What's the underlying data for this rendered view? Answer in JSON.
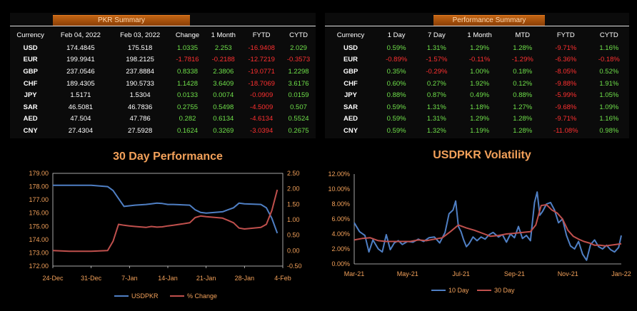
{
  "pkr_summary": {
    "title": "PKR Summary",
    "columns": [
      "Currency",
      "Feb 04, 2022",
      "Feb 03, 2022",
      "Change",
      "1 Month",
      "FYTD",
      "CYTD"
    ],
    "rows": [
      [
        "USD",
        "174.4845",
        "175.518",
        "1.0335",
        "2.253",
        "-16.9408",
        "2.029"
      ],
      [
        "EUR",
        "199.9941",
        "198.2125",
        "-1.7816",
        "-0.2188",
        "-12.7219",
        "-0.3573"
      ],
      [
        "GBP",
        "237.0546",
        "237.8884",
        "0.8338",
        "2.3806",
        "-19.0771",
        "1.2298"
      ],
      [
        "CHF",
        "189.4305",
        "190.5733",
        "1.1428",
        "3.6409",
        "-18.7069",
        "3.6176"
      ],
      [
        "JPY",
        "1.5171",
        "1.5304",
        "0.0133",
        "0.0074",
        "-0.0909",
        "0.0159"
      ],
      [
        "SAR",
        "46.5081",
        "46.7836",
        "0.2755",
        "0.5498",
        "-4.5009",
        "0.507"
      ],
      [
        "AED",
        "47.504",
        "47.786",
        "0.282",
        "0.6134",
        "-4.6134",
        "0.5524"
      ],
      [
        "CNY",
        "27.4304",
        "27.5928",
        "0.1624",
        "0.3269",
        "-3.0394",
        "0.2675"
      ]
    ]
  },
  "performance_summary": {
    "title": "Performance Summary",
    "columns": [
      "Currency",
      "1 Day",
      "7 Day",
      "1 Month",
      "MTD",
      "FYTD",
      "CYTD"
    ],
    "rows": [
      [
        "USD",
        "0.59%",
        "1.31%",
        "1.29%",
        "1.28%",
        "-9.71%",
        "1.16%"
      ],
      [
        "EUR",
        "-0.89%",
        "-1.57%",
        "-0.11%",
        "-1.29%",
        "-6.36%",
        "-0.18%"
      ],
      [
        "GBP",
        "0.35%",
        "-0.29%",
        "1.00%",
        "0.18%",
        "-8.05%",
        "0.52%"
      ],
      [
        "CHF",
        "0.60%",
        "0.27%",
        "1.92%",
        "0.12%",
        "-9.88%",
        "1.91%"
      ],
      [
        "JPY",
        "0.88%",
        "0.87%",
        "0.49%",
        "0.88%",
        "-5.99%",
        "1.05%"
      ],
      [
        "SAR",
        "0.59%",
        "1.31%",
        "1.18%",
        "1.27%",
        "-9.68%",
        "1.09%"
      ],
      [
        "AED",
        "0.59%",
        "1.31%",
        "1.29%",
        "1.28%",
        "-9.71%",
        "1.16%"
      ],
      [
        "CNY",
        "0.59%",
        "1.32%",
        "1.19%",
        "1.28%",
        "-11.08%",
        "0.98%"
      ]
    ]
  },
  "colors": {
    "usdpkr": "#4f7fc4",
    "pct_change": "#c0504d",
    "title": "#f3a15a",
    "positive": "#6fe04a",
    "negative": "#ff3030"
  },
  "chart_data": [
    {
      "type": "line",
      "title": "30 Day Performance",
      "x_tick_labels": [
        "24-Dec",
        "31-Dec",
        "7-Jan",
        "14-Jan",
        "21-Jan",
        "28-Jan",
        "4-Feb"
      ],
      "y_left_ticks": [
        "172.00",
        "173.00",
        "174.00",
        "175.00",
        "176.00",
        "177.00",
        "178.00",
        "179.00"
      ],
      "y_right_ticks": [
        "-0.50",
        "0.00",
        "0.50",
        "1.00",
        "1.50",
        "2.00",
        "2.50"
      ],
      "ylim_left": [
        172,
        179
      ],
      "ylim_right": [
        -0.5,
        2.5
      ],
      "xlim_days": [
        0,
        42
      ],
      "series": [
        {
          "name": "USDPKR",
          "axis": "left",
          "x": [
            0,
            3,
            5,
            6,
            7,
            10,
            11,
            12,
            13,
            14,
            15,
            17,
            18,
            19,
            20,
            21,
            22,
            25,
            26,
            27,
            28,
            31,
            32,
            33,
            34,
            35,
            38,
            39,
            40,
            41
          ],
          "y": [
            178.1,
            178.1,
            178.1,
            178.1,
            178.1,
            178.0,
            177.7,
            177.1,
            176.5,
            176.55,
            176.6,
            176.65,
            176.7,
            176.75,
            176.72,
            176.65,
            176.65,
            176.6,
            176.25,
            176.05,
            176.0,
            176.1,
            176.25,
            176.4,
            176.75,
            176.7,
            176.65,
            176.4,
            175.6,
            174.48
          ]
        },
        {
          "name": "% Change",
          "axis": "right",
          "x": [
            0,
            3,
            5,
            6,
            7,
            10,
            11,
            12,
            13,
            14,
            15,
            17,
            18,
            19,
            20,
            21,
            22,
            25,
            26,
            27,
            28,
            31,
            32,
            33,
            34,
            35,
            38,
            39,
            40,
            41
          ],
          "y": [
            0.0,
            -0.02,
            -0.02,
            -0.02,
            -0.02,
            0.0,
            0.3,
            0.85,
            0.82,
            0.8,
            0.78,
            0.75,
            0.78,
            0.76,
            0.77,
            0.8,
            0.82,
            0.9,
            1.07,
            1.12,
            1.1,
            1.05,
            0.98,
            0.9,
            0.73,
            0.7,
            0.75,
            0.85,
            1.3,
            1.97
          ]
        }
      ]
    },
    {
      "type": "line",
      "title": "USDPKR Volatility",
      "x_tick_labels": [
        "Mar-21",
        "May-21",
        "Jul-21",
        "Sep-21",
        "Nov-21",
        "Jan-22"
      ],
      "y_ticks": [
        "0.00%",
        "2.00%",
        "4.00%",
        "6.00%",
        "8.00%",
        "10.00%",
        "12.00%"
      ],
      "ylim": [
        0,
        12
      ],
      "x_months": [
        0,
        10
      ],
      "series": [
        {
          "name": "10 Day",
          "x": [
            0,
            0.2,
            0.4,
            0.55,
            0.7,
            0.9,
            1.05,
            1.2,
            1.35,
            1.5,
            1.65,
            1.8,
            2.0,
            2.2,
            2.4,
            2.6,
            2.8,
            3.0,
            3.2,
            3.4,
            3.55,
            3.7,
            3.8,
            3.9,
            4.0,
            4.1,
            4.2,
            4.3,
            4.45,
            4.6,
            4.75,
            4.9,
            5.05,
            5.2,
            5.4,
            5.55,
            5.7,
            5.85,
            6.0,
            6.15,
            6.3,
            6.45,
            6.6,
            6.75,
            6.85,
            6.95,
            7.05,
            7.2,
            7.35,
            7.5,
            7.65,
            7.8,
            7.95,
            8.1,
            8.25,
            8.4,
            8.55,
            8.7,
            8.85,
            9.0,
            9.15,
            9.3,
            9.45,
            9.6,
            9.75,
            9.9,
            10.0
          ],
          "y": [
            5.5,
            4.3,
            3.8,
            1.6,
            3.2,
            2.0,
            1.6,
            3.9,
            1.9,
            2.8,
            3.1,
            2.6,
            3.0,
            2.9,
            3.3,
            3.0,
            3.5,
            3.6,
            2.8,
            4.2,
            6.7,
            7.2,
            8.4,
            5.0,
            4.3,
            3.2,
            2.3,
            2.7,
            3.6,
            3.1,
            3.6,
            3.3,
            3.9,
            4.2,
            3.6,
            3.9,
            2.9,
            4.0,
            3.5,
            5.0,
            3.4,
            3.8,
            3.1,
            8.2,
            9.6,
            6.5,
            7.0,
            8.0,
            8.2,
            7.2,
            5.5,
            6.0,
            3.8,
            2.4,
            2.0,
            3.0,
            1.3,
            0.5,
            2.6,
            3.2,
            2.3,
            2.0,
            2.5,
            1.9,
            1.6,
            2.2,
            3.8
          ]
        },
        {
          "name": "30 Day",
          "x": [
            0,
            0.3,
            0.6,
            0.9,
            1.2,
            1.5,
            1.8,
            2.1,
            2.4,
            2.7,
            3.0,
            3.3,
            3.6,
            3.9,
            4.2,
            4.5,
            4.8,
            5.1,
            5.4,
            5.7,
            6.0,
            6.3,
            6.6,
            6.8,
            7.0,
            7.2,
            7.4,
            7.6,
            7.8,
            8.0,
            8.2,
            8.4,
            8.6,
            8.8,
            9.0,
            9.2,
            9.4,
            9.6,
            9.8,
            10.0
          ],
          "y": [
            3.2,
            3.4,
            3.5,
            3.1,
            3.0,
            3.0,
            3.0,
            3.0,
            3.2,
            3.1,
            3.3,
            3.5,
            4.3,
            5.2,
            4.8,
            4.5,
            4.1,
            3.7,
            3.8,
            4.0,
            4.1,
            4.2,
            4.3,
            5.2,
            7.8,
            7.9,
            7.2,
            6.8,
            6.0,
            4.5,
            3.7,
            3.3,
            3.0,
            2.8,
            2.5,
            2.5,
            2.4,
            2.5,
            2.6,
            2.7
          ]
        }
      ]
    }
  ]
}
